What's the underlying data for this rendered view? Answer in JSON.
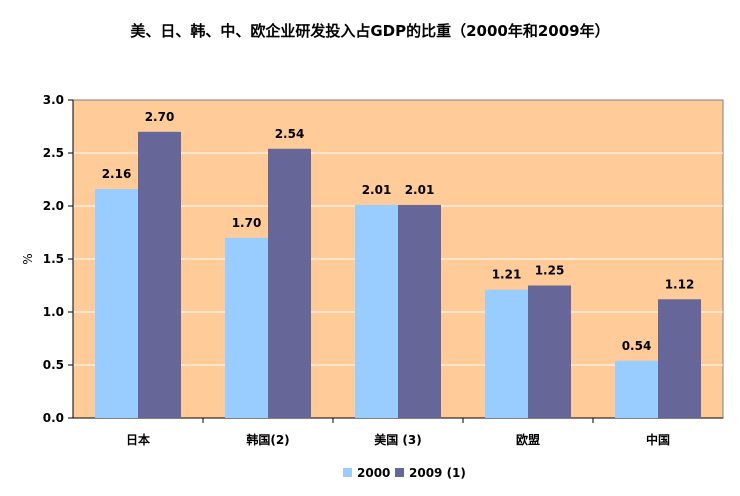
{
  "chart_data": {
    "type": "bar",
    "title": "美、日、韩、中、欧企业研发投入占GDP的比重（2000年和2009年）",
    "xlabel": "",
    "ylabel": "%",
    "categories": [
      "日本",
      "韩国(2)",
      "美国 (3)",
      "欧盟",
      "中国"
    ],
    "series": [
      {
        "name": "2000",
        "values": [
          2.16,
          1.7,
          2.01,
          1.21,
          0.54
        ],
        "labels": [
          "2.16",
          "1.70",
          "2.01",
          "1.21",
          "0.54"
        ],
        "color": "#99ccff"
      },
      {
        "name": "2009 (1)",
        "values": [
          2.7,
          2.54,
          2.01,
          1.25,
          1.12
        ],
        "labels": [
          "2.70",
          "2.54",
          "2.01",
          "1.25",
          "1.12"
        ],
        "color": "#666699"
      }
    ],
    "ylim": [
      0,
      3.0
    ],
    "yticks": [
      "0.0",
      "0.5",
      "1.0",
      "1.5",
      "2.0",
      "2.5",
      "3.0"
    ],
    "grid": true,
    "plot_background": "#ffcc99",
    "legend_position": "bottom"
  }
}
